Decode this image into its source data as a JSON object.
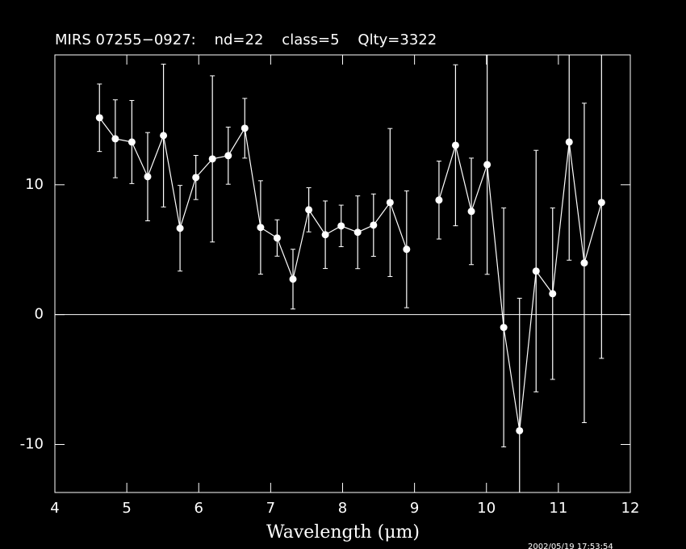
{
  "chart_data": {
    "type": "line",
    "title": "MIRS 07255−0927:    nd=22    class=5    Qlty=3322",
    "x_label": "Wavelength (μm)",
    "footer": "2002/05/19 17:53:54",
    "x": [
      4.62,
      4.84,
      5.07,
      5.29,
      5.51,
      5.74,
      5.96,
      6.19,
      6.41,
      6.64,
      6.86,
      7.09,
      7.31,
      7.53,
      7.76,
      7.98,
      8.21,
      8.43,
      8.66,
      8.89,
      9.11,
      9.34,
      9.57,
      9.79,
      10.01,
      10.24,
      10.46,
      10.69,
      10.92,
      11.15,
      11.36,
      11.6
    ],
    "series": [
      {
        "color": "#ffffff",
        "values": [
          15.16,
          13.54,
          13.29,
          10.62,
          13.79,
          6.65,
          10.56,
          11.99,
          12.24,
          14.35,
          6.71,
          5.9,
          2.73,
          8.07,
          6.15,
          6.83,
          6.34,
          6.89,
          8.63,
          5.03,
          null,
          8.82,
          13.04,
          7.95,
          11.55,
          -0.99,
          -8.94,
          3.35,
          1.61,
          13.29,
          3.98,
          8.63
        ],
        "errors": [
          2.6,
          3.0,
          3.2,
          3.4,
          5.5,
          3.3,
          1.7,
          6.4,
          2.2,
          2.3,
          3.6,
          1.4,
          2.3,
          1.7,
          2.6,
          1.6,
          2.8,
          2.4,
          5.7,
          4.5,
          null,
          3.0,
          6.2,
          4.1,
          8.45,
          9.2,
          10.2,
          9.3,
          6.6,
          9.1,
          12.3,
          12.0
        ]
      }
    ],
    "xlim": [
      4,
      12
    ],
    "xticks": [
      4,
      5,
      6,
      7,
      8,
      9,
      10,
      11,
      12
    ],
    "ylim": [
      -13.7,
      20
    ],
    "yticks": [
      -10,
      0,
      10
    ],
    "hlines": [
      0
    ]
  }
}
